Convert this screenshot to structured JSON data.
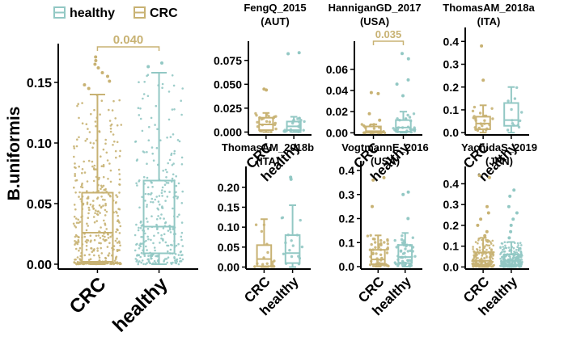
{
  "colors": {
    "CRC": "#c8b273",
    "healthy": "#92c8c4",
    "axis": "#000000"
  },
  "chart_data": {
    "legend": {
      "placement": "top-left",
      "entries": [
        {
          "name": "healthy",
          "color": "#92c8c4"
        },
        {
          "name": "CRC",
          "color": "#c8b273"
        }
      ]
    },
    "ylabel": "B.uniformis",
    "panels": [
      {
        "id": "overall",
        "type": "box",
        "title": [],
        "categories": [
          "CRC",
          "healthy"
        ],
        "ylim": [
          -0.004,
          0.178
        ],
        "yticks": [
          0.0,
          0.05,
          0.1,
          0.15
        ],
        "ytick_labels": [
          "0.00",
          "0.05",
          "0.10",
          "0.15"
        ],
        "boxes": [
          {
            "group": "CRC",
            "min": 0.0,
            "q1": 0.002,
            "median": 0.026,
            "q3": 0.059,
            "max": 0.14,
            "outliers": [
              0.145,
              0.148,
              0.151,
              0.155,
              0.158,
              0.162,
              0.165,
              0.168,
              0.171
            ]
          },
          {
            "group": "healthy",
            "min": 0.0,
            "q1": 0.009,
            "median": 0.031,
            "q3": 0.069,
            "max": 0.158,
            "outliers": [
              0.163,
              0.166
            ]
          }
        ],
        "n_points": {
          "CRC": 420,
          "healthy": 300
        },
        "significance": {
          "label": "0.040",
          "between": [
            "CRC",
            "healthy"
          ]
        }
      },
      {
        "id": "FengQ_2015",
        "type": "box",
        "title": [
          "FengQ_2015",
          "(AUT)"
        ],
        "categories": [
          "CRC",
          "healthy"
        ],
        "ylim": [
          -0.003,
          0.09
        ],
        "yticks": [
          0.0,
          0.025,
          0.05,
          0.075
        ],
        "ytick_labels": [
          "0.000",
          "0.025",
          "0.050",
          "0.075"
        ],
        "boxes": [
          {
            "group": "CRC",
            "min": 0.0,
            "q1": 0.002,
            "median": 0.008,
            "q3": 0.015,
            "max": 0.02,
            "outliers": [
              0.044,
              0.045
            ]
          },
          {
            "group": "healthy",
            "min": 0.0,
            "q1": 0.002,
            "median": 0.006,
            "q3": 0.011,
            "max": 0.016,
            "outliers": [
              0.082,
              0.083
            ]
          }
        ],
        "n_points": {
          "CRC": 22,
          "healthy": 24
        }
      },
      {
        "id": "HanniganGD_2017",
        "type": "box",
        "title": [
          "HanniganGD_2017",
          "(USA)"
        ],
        "categories": [
          "CRC",
          "healthy"
        ],
        "ylim": [
          -0.002,
          0.082
        ],
        "yticks": [
          0.0,
          0.02,
          0.04,
          0.06
        ],
        "ytick_labels": [
          "0.00",
          "0.02",
          "0.04",
          "0.06"
        ],
        "boxes": [
          {
            "group": "CRC",
            "min": 0.0,
            "q1": 0.0,
            "median": 0.0015,
            "q3": 0.006,
            "max": 0.008,
            "outliers": [
              0.012,
              0.018,
              0.037,
              0.038
            ]
          },
          {
            "group": "healthy",
            "min": 0.0,
            "q1": 0.001,
            "median": 0.005,
            "q3": 0.012,
            "max": 0.02,
            "outliers": [
              0.035,
              0.046,
              0.05,
              0.07,
              0.075
            ]
          }
        ],
        "n_points": {
          "CRC": 22,
          "healthy": 24
        },
        "significance": {
          "label": "0.035",
          "between": [
            "CRC",
            "healthy"
          ]
        }
      },
      {
        "id": "ThomasAM_2018a",
        "type": "box",
        "title": [
          "ThomasAM_2018a",
          "(ITA)"
        ],
        "categories": [
          "CRC",
          "healthy"
        ],
        "ylim": [
          -0.01,
          0.44
        ],
        "yticks": [
          0.0,
          0.1,
          0.2,
          0.3,
          0.4
        ],
        "ytick_labels": [
          "0.0",
          "0.1",
          "0.2",
          "0.3",
          "0.4"
        ],
        "boxes": [
          {
            "group": "CRC",
            "min": 0.0,
            "q1": 0.015,
            "median": 0.04,
            "q3": 0.07,
            "max": 0.12,
            "outliers": [
              0.23,
              0.38
            ]
          },
          {
            "group": "healthy",
            "min": 0.0,
            "q1": 0.03,
            "median": 0.055,
            "q3": 0.13,
            "max": 0.2,
            "outliers": []
          }
        ],
        "n_points": {
          "CRC": 22,
          "healthy": 12
        }
      },
      {
        "id": "ThomasAM_2018b",
        "type": "box",
        "title": [
          "ThomasAM_2018b",
          "(ITA)"
        ],
        "categories": [
          "CRC",
          "healthy"
        ],
        "ylim": [
          -0.005,
          0.24
        ],
        "yticks": [
          0.0,
          0.05,
          0.1,
          0.15,
          0.2
        ],
        "ytick_labels": [
          "0.00",
          "0.05",
          "0.10",
          "0.15",
          "0.20"
        ],
        "boxes": [
          {
            "group": "CRC",
            "min": 0.0,
            "q1": 0.002,
            "median": 0.02,
            "q3": 0.055,
            "max": 0.12,
            "outliers": []
          },
          {
            "group": "healthy",
            "min": 0.0,
            "q1": 0.01,
            "median": 0.035,
            "q3": 0.08,
            "max": 0.155,
            "outliers": [
              0.22,
              0.225
            ]
          }
        ],
        "n_points": {
          "CRC": 18,
          "healthy": 16
        }
      },
      {
        "id": "VogtmannE_2016",
        "type": "box",
        "title": [
          "VogtmannE_2016",
          "(USA)"
        ],
        "categories": [
          "CRC",
          "healthy"
        ],
        "ylim": [
          -0.01,
          0.42
        ],
        "yticks": [
          0.0,
          0.1,
          0.2,
          0.3,
          0.4
        ],
        "ytick_labels": [
          "0.0",
          "0.1",
          "0.2",
          "0.3",
          "0.4"
        ],
        "boxes": [
          {
            "group": "CRC",
            "min": 0.0,
            "q1": 0.01,
            "median": 0.03,
            "q3": 0.07,
            "max": 0.13,
            "outliers": [
              0.25,
              0.36,
              0.37
            ]
          },
          {
            "group": "healthy",
            "min": 0.0,
            "q1": 0.015,
            "median": 0.04,
            "q3": 0.09,
            "max": 0.14,
            "outliers": [
              0.2,
              0.3,
              0.31
            ]
          }
        ],
        "n_points": {
          "CRC": 52,
          "healthy": 52
        }
      },
      {
        "id": "YachidaS_2019",
        "type": "box",
        "title": [
          "YachidaS_2019",
          "(JPN)"
        ],
        "categories": [
          "CRC",
          "healthy"
        ],
        "ylim": [
          -0.01,
          0.46
        ],
        "yticks": [
          0.0,
          0.1,
          0.2,
          0.3,
          0.4
        ],
        "ytick_labels": [
          "0.0",
          "0.1",
          "0.2",
          "0.3",
          "0.4"
        ],
        "boxes": [
          {
            "group": "CRC",
            "min": 0.0,
            "q1": 0.01,
            "median": 0.03,
            "q3": 0.07,
            "max": 0.14,
            "outliers": [
              0.15,
              0.17,
              0.2,
              0.23,
              0.26,
              0.29,
              0.43,
              0.44
            ]
          },
          {
            "group": "healthy",
            "min": 0.0,
            "q1": 0.01,
            "median": 0.03,
            "q3": 0.06,
            "max": 0.12,
            "outliers": [
              0.14,
              0.17,
              0.2,
              0.23,
              0.26,
              0.29,
              0.34,
              0.37
            ]
          }
        ],
        "n_points": {
          "CRC": 200,
          "healthy": 230
        }
      }
    ]
  }
}
